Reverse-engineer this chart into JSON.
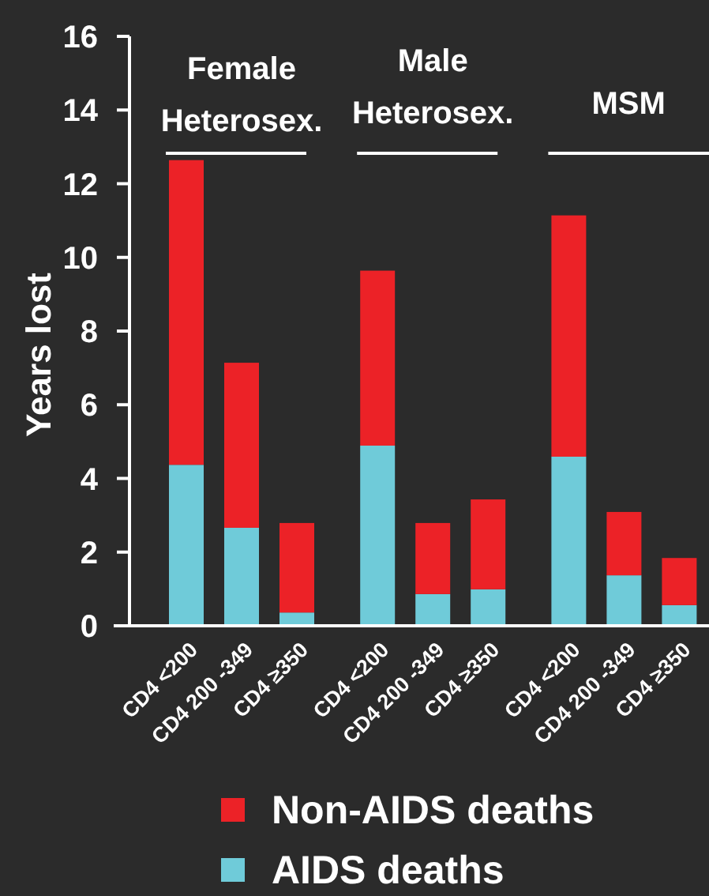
{
  "chart_data": {
    "type": "bar",
    "stacked": true,
    "ylabel": "Years lost",
    "categories": [
      "CD4 <200",
      "CD4 200 -349",
      "CD4 ≥350",
      "CD4 <200",
      "CD4 200 -349",
      "CD4 ≥350",
      "CD4 <200",
      "CD4 200 -349",
      "CD4 ≥350"
    ],
    "series": [
      {
        "name": "AIDS deaths",
        "color": "#6fcbd9",
        "values": [
          4.37,
          2.66,
          0.36,
          4.89,
          0.86,
          0.99,
          4.59,
          1.37,
          0.56
        ]
      },
      {
        "name": "Non-AIDS deaths",
        "color": "#ec2227",
        "values": [
          8.27,
          4.48,
          2.43,
          4.75,
          1.93,
          2.44,
          6.55,
          1.72,
          1.28
        ]
      }
    ],
    "ylim": [
      0,
      16
    ],
    "yticks": [
      0,
      2,
      4,
      6,
      8,
      10,
      12,
      14,
      16
    ],
    "grid": false,
    "legend": "bottom",
    "annotations": [
      "Female Heterosex.",
      "Male Heterosex.",
      "MSM"
    ]
  }
}
